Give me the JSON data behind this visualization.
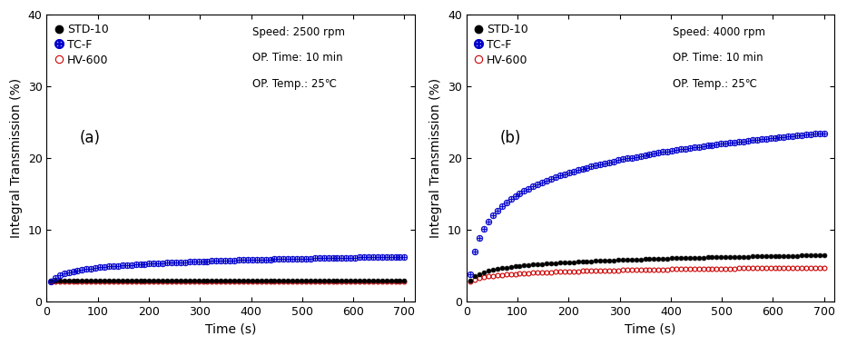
{
  "panel_a": {
    "label": "(a)",
    "speed_text": "Speed: 2500 rpm",
    "time_text": "OP. Time: 10 min",
    "temp_text": "OP. Temp.: 25℃",
    "STD10": {
      "color": "#000000",
      "label": "STD-10",
      "y_const": 3.0,
      "is_flat": true
    },
    "TCF": {
      "color": "#0000cc",
      "label": "TC-F",
      "y_start": 2.8,
      "y_end": 6.3
    },
    "HV600": {
      "color": "#cc0000",
      "label": "HV-600",
      "y_const": 2.85,
      "is_flat": true
    }
  },
  "panel_b": {
    "label": "(b)",
    "speed_text": "Speed: 4000 rpm",
    "time_text": "OP. Time: 10 min",
    "temp_text": "OP. Temp.: 25℃",
    "STD10": {
      "color": "#000000",
      "label": "STD-10",
      "y_start": 3.0,
      "y_end": 6.5,
      "is_flat": false
    },
    "TCF": {
      "color": "#0000cc",
      "label": "TC-F",
      "y_start": 3.8,
      "y_end": 23.5
    },
    "HV600": {
      "color": "#cc0000",
      "label": "HV-600",
      "y_start": 2.8,
      "y_end": 4.8
    }
  },
  "x_start": 8,
  "x_end": 700,
  "n_points": 80,
  "ylim": [
    0,
    40
  ],
  "xlim": [
    0,
    720
  ],
  "xticks": [
    0,
    100,
    200,
    300,
    400,
    500,
    600,
    700
  ],
  "yticks": [
    0,
    10,
    20,
    30,
    40
  ],
  "xlabel": "Time (s)",
  "ylabel": "Integral Transmission (%)"
}
